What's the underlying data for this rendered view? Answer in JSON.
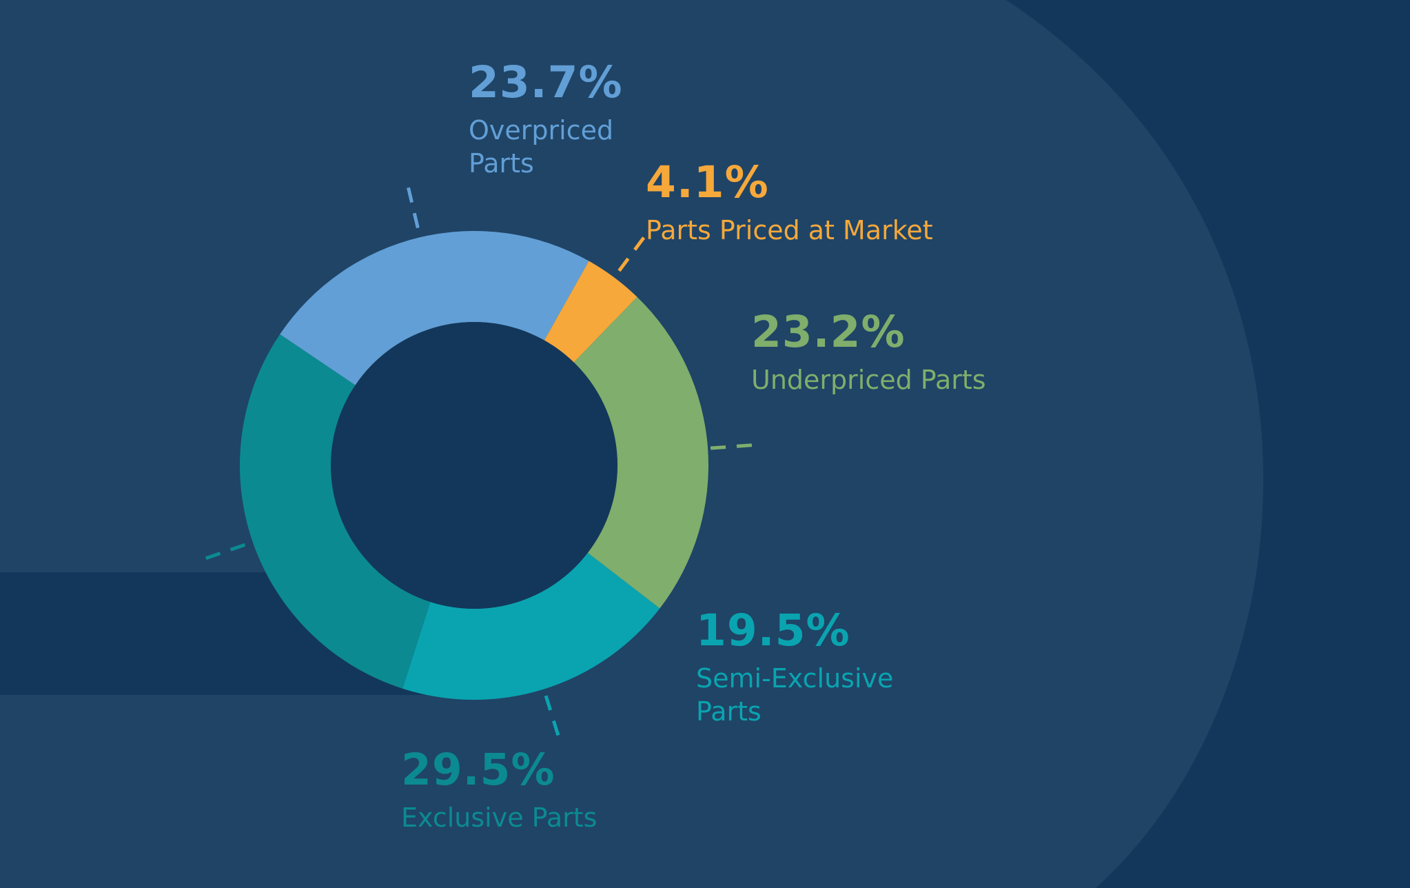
{
  "chart_data": {
    "type": "pie",
    "variant": "donut",
    "legend": "none",
    "slices": [
      {
        "label": "Overpriced Parts",
        "value": 23.7,
        "value_label": "23.7%",
        "color": "#629fd6"
      },
      {
        "label": "Parts Priced at Market",
        "value": 4.1,
        "value_label": "4.1%",
        "color": "#f6a83b"
      },
      {
        "label": "Underpriced Parts",
        "value": 23.2,
        "value_label": "23.2%",
        "color": "#80ae6c"
      },
      {
        "label": "Semi-Exclusive Parts",
        "value": 19.5,
        "value_label": "19.5%",
        "color": "#0aa4b0"
      },
      {
        "label": "Exclusive Parts",
        "value": 29.5,
        "value_label": "29.5%",
        "color": "#0c8a91"
      }
    ]
  },
  "colors": {
    "background_dark": "#13375a",
    "background_panel": "#1f4466",
    "donut_hole": "#13375a"
  }
}
